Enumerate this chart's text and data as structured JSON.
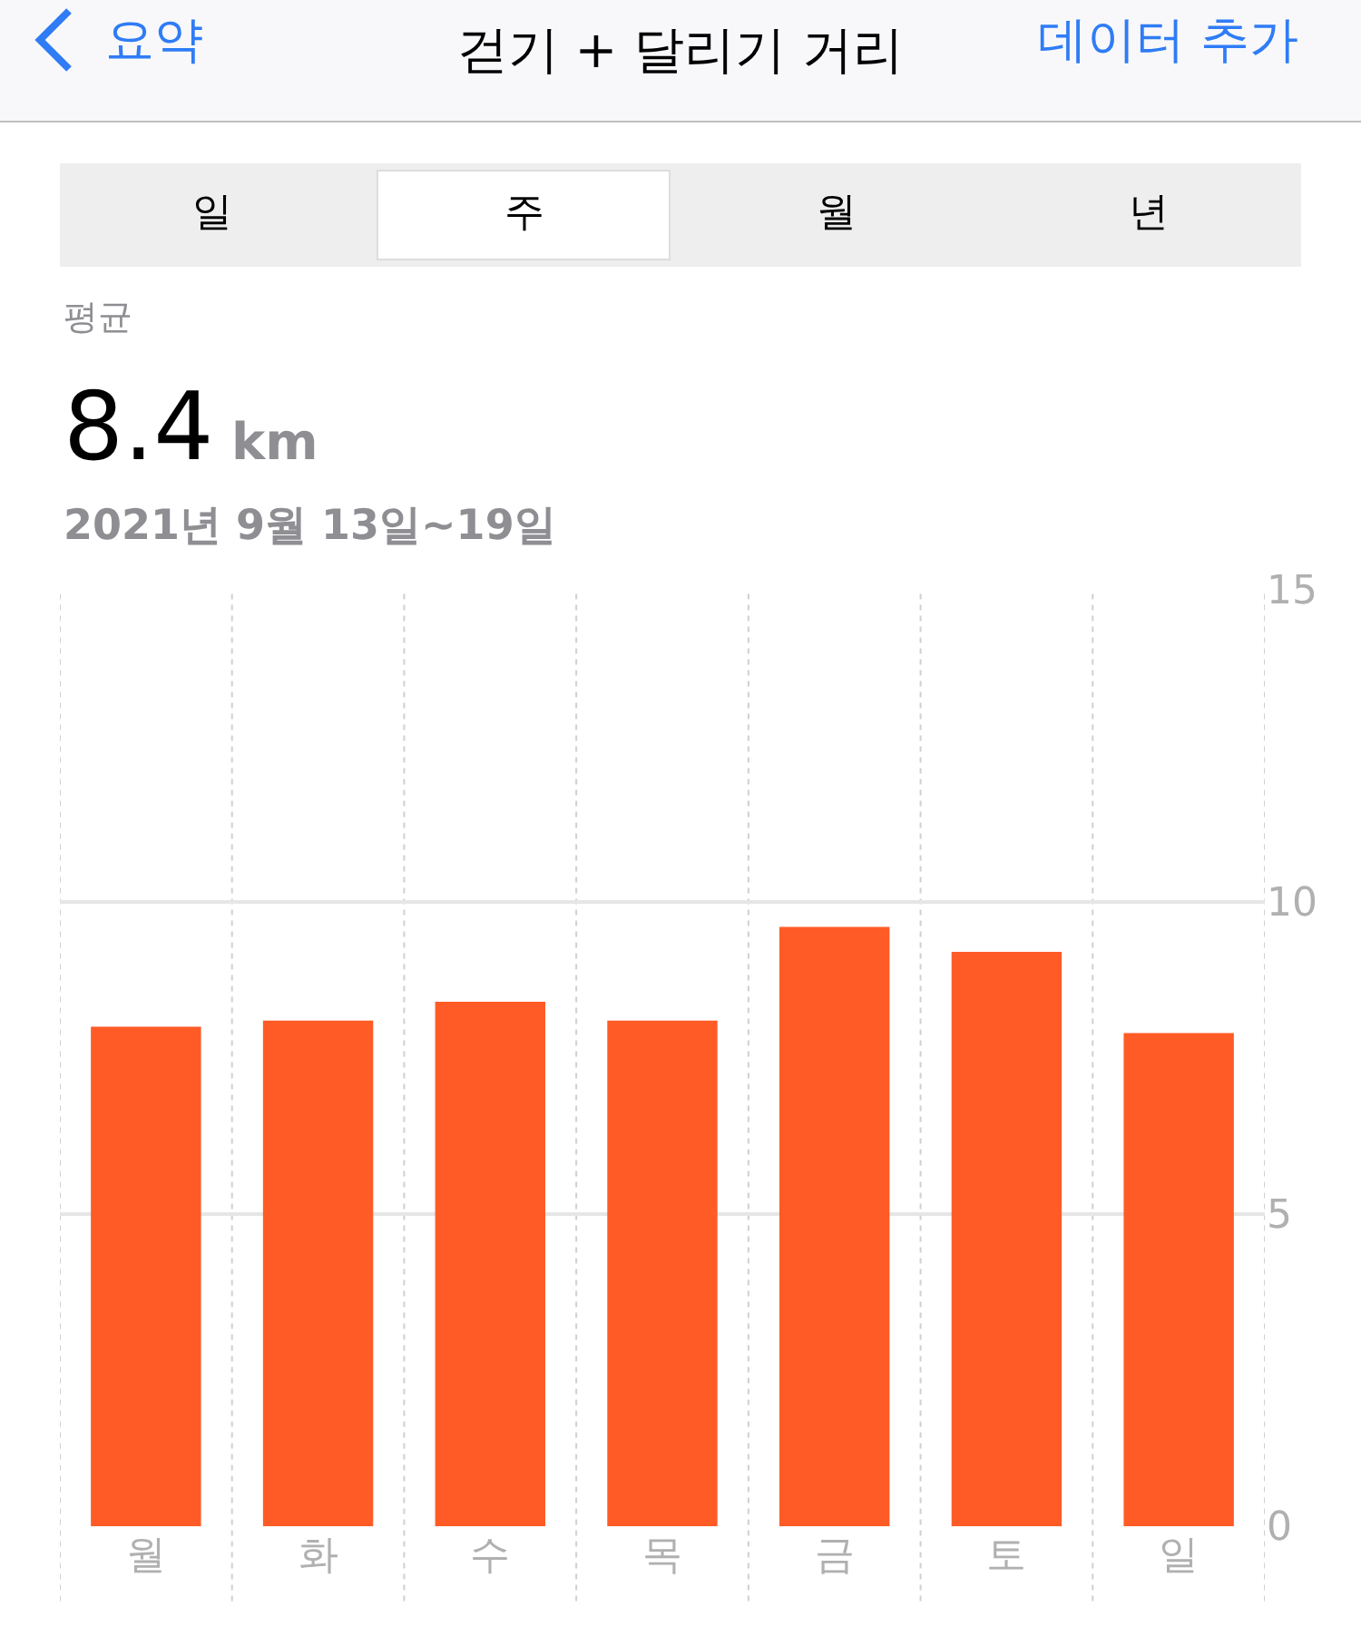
{
  "chart_data": {
    "type": "bar",
    "title": "걷기 + 달리기 거리",
    "annotations": [
      "요약",
      "데이터 추가",
      "일",
      "주",
      "월",
      "년",
      "평균",
      "8.4 km",
      "2021년 9월 13일~19일"
    ],
    "categories": [
      "월",
      "화",
      "수",
      "목",
      "금",
      "토",
      "일"
    ],
    "values": [
      8.0,
      8.1,
      8.4,
      8.1,
      9.6,
      9.2,
      7.9
    ],
    "color": "#ff5b26",
    "ylim": [
      0,
      15
    ],
    "yticks": [
      0,
      5,
      10,
      15
    ],
    "grid": true
  }
}
